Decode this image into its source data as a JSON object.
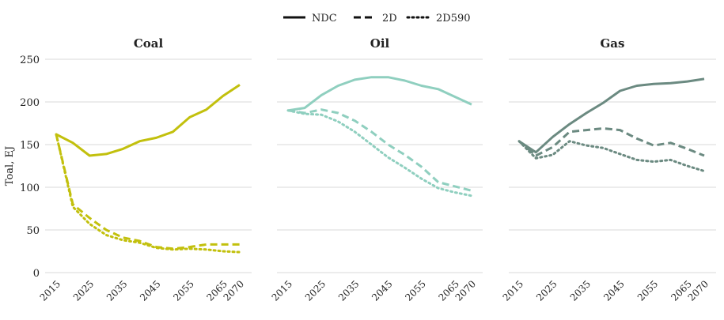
{
  "chart_data": {
    "type": "line",
    "ylabel": "Toal, EJ",
    "ylim": [
      0,
      250
    ],
    "yticks": [
      0,
      50,
      100,
      150,
      200,
      250
    ],
    "xticks": [
      2015,
      2025,
      2035,
      2045,
      2055,
      2065,
      2070
    ],
    "x": [
      2015,
      2020,
      2025,
      2030,
      2035,
      2040,
      2045,
      2050,
      2055,
      2060,
      2065,
      2070
    ],
    "grid": true,
    "legend": {
      "position": "top-center",
      "entries": [
        {
          "label": "NDC",
          "dash": "solid"
        },
        {
          "label": "2D",
          "dash": "dashed"
        },
        {
          "label": "2D590",
          "dash": "dotted"
        }
      ]
    },
    "panels": [
      {
        "title": "Coal",
        "color": "#c2c00d",
        "series": [
          {
            "name": "NDC",
            "values": [
              162,
              152,
              137,
              139,
              145,
              154,
              158,
              165,
              182,
              191,
              207,
              220
            ]
          },
          {
            "name": "2D",
            "values": [
              162,
              80,
              64,
              50,
              41,
              37,
              30,
              28,
              30,
              33,
              33,
              33
            ]
          },
          {
            "name": "2D590",
            "values": [
              162,
              77,
              57,
              44,
              38,
              35,
              29,
              27,
              28,
              27,
              25,
              24
            ]
          }
        ]
      },
      {
        "title": "Oil",
        "color": "#8fcfbf",
        "series": [
          {
            "name": "NDC",
            "values": [
              190,
              193,
              208,
              219,
              226,
              229,
              229,
              225,
              219,
              215,
              206,
              197
            ]
          },
          {
            "name": "2D",
            "values": [
              190,
              187,
              191,
              187,
              178,
              165,
              150,
              138,
              124,
              106,
              101,
              96
            ]
          },
          {
            "name": "2D590",
            "values": [
              190,
              186,
              185,
              177,
              165,
              150,
              135,
              123,
              110,
              99,
              94,
              90
            ]
          }
        ]
      },
      {
        "title": "Gas",
        "color": "#6b8a81",
        "series": [
          {
            "name": "NDC",
            "values": [
              154,
              141,
              159,
              174,
              187,
              199,
              213,
              219,
              221,
              222,
              224,
              227
            ]
          },
          {
            "name": "2D",
            "values": [
              154,
              137,
              147,
              165,
              167,
              169,
              167,
              157,
              149,
              152,
              145,
              137
            ]
          },
          {
            "name": "2D590",
            "values": [
              154,
              134,
              138,
              154,
              149,
              146,
              139,
              132,
              130,
              132,
              125,
              119
            ]
          }
        ]
      }
    ]
  }
}
